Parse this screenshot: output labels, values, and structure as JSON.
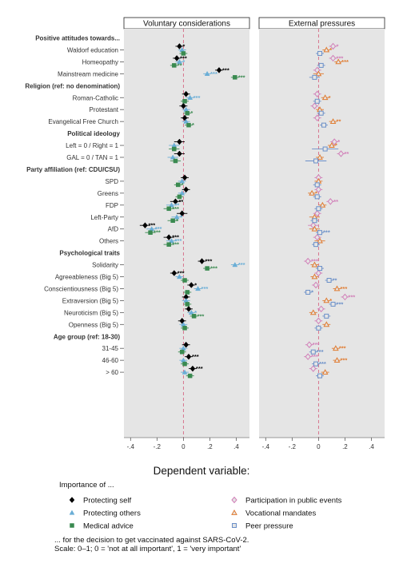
{
  "chart_data": {
    "type": "scatter",
    "subtype": "coefficient plot with 95% confidence intervals",
    "panels": [
      "Voluntary considerations",
      "External pressures"
    ],
    "xlim": [
      -0.45,
      0.5
    ],
    "xticks": [
      "-.4",
      "-.2",
      "0",
      ".2",
      ".4"
    ],
    "xtick_values": [
      -0.4,
      -0.2,
      0,
      0.2,
      0.4
    ],
    "reference_line": 0,
    "grid": false,
    "background": "#e5e5e5",
    "rows": [
      {
        "type": "header",
        "label": "Positive attitudes towards..."
      },
      {
        "type": "item",
        "label": "Waldorf education"
      },
      {
        "type": "item",
        "label": "Homeopathy"
      },
      {
        "type": "item",
        "label": "Mainstream medicine"
      },
      {
        "type": "header",
        "label": "Religion (ref: no denomination)"
      },
      {
        "type": "item",
        "label": "Roman-Catholic"
      },
      {
        "type": "item",
        "label": "Protestant"
      },
      {
        "type": "item",
        "label": "Evangelical Free Church"
      },
      {
        "type": "header",
        "label": "Political ideology"
      },
      {
        "type": "item",
        "label": "Left = 0 / Right = 1"
      },
      {
        "type": "item",
        "label": "GAL = 0 / TAN = 1"
      },
      {
        "type": "header",
        "label": "Party affiliation (ref: CDU/CSU)"
      },
      {
        "type": "item",
        "label": "SPD"
      },
      {
        "type": "item",
        "label": "Greens"
      },
      {
        "type": "item",
        "label": "FDP"
      },
      {
        "type": "item",
        "label": "Left-Party"
      },
      {
        "type": "item",
        "label": "AfD"
      },
      {
        "type": "item",
        "label": "Others"
      },
      {
        "type": "header",
        "label": "Psychological traits"
      },
      {
        "type": "item",
        "label": "Solidarity"
      },
      {
        "type": "item",
        "label": "Agreeableness (Big 5)"
      },
      {
        "type": "item",
        "label": "Conscientiousness (Big 5)"
      },
      {
        "type": "item",
        "label": "Extraversion (Big 5)"
      },
      {
        "type": "item",
        "label": "Neuroticism (Big 5)"
      },
      {
        "type": "item",
        "label": "Openness (Big 5)"
      },
      {
        "type": "header",
        "label": "Age group (ref: 18-30)"
      },
      {
        "type": "item",
        "label": "31-45"
      },
      {
        "type": "item",
        "label": "46-60"
      },
      {
        "type": "item",
        "label": "> 60"
      }
    ],
    "series": [
      {
        "name": "Protecting self",
        "panel": 0,
        "marker": "diamond",
        "color": "#000000",
        "values": [
          -0.03,
          -0.05,
          0.27,
          0.02,
          0.0,
          0.01,
          -0.03,
          -0.03,
          0.01,
          0.02,
          -0.06,
          -0.01,
          -0.29,
          -0.11,
          0.14,
          -0.07,
          0.06,
          0.02,
          0.04,
          -0.01,
          0.02,
          0.04,
          0.07
        ],
        "ci": [
          [
            -0.06,
            0.0
          ],
          [
            -0.08,
            -0.02
          ],
          [
            0.24,
            0.3
          ],
          [
            -0.01,
            0.05
          ],
          [
            -0.03,
            0.03
          ],
          [
            -0.02,
            0.04
          ],
          [
            -0.07,
            0.01
          ],
          [
            -0.07,
            0.01
          ],
          [
            -0.02,
            0.04
          ],
          [
            -0.01,
            0.05
          ],
          [
            -0.1,
            -0.02
          ],
          [
            -0.05,
            0.03
          ],
          [
            -0.33,
            -0.25
          ],
          [
            -0.15,
            -0.07
          ],
          [
            0.11,
            0.17
          ],
          [
            -0.1,
            -0.04
          ],
          [
            0.03,
            0.09
          ],
          [
            -0.01,
            0.05
          ],
          [
            0.01,
            0.07
          ],
          [
            -0.04,
            0.02
          ],
          [
            -0.01,
            0.05
          ],
          [
            0.01,
            0.07
          ],
          [
            0.04,
            0.1
          ]
        ],
        "stars": [
          "*",
          "***",
          "***",
          "",
          "",
          "",
          "",
          "",
          "",
          "",
          "**",
          "",
          "***",
          "***",
          "***",
          "***",
          "*",
          "",
          "",
          "",
          "",
          "***",
          "***"
        ]
      },
      {
        "name": "Protecting others",
        "panel": 0,
        "marker": "triangle",
        "color": "#6baed6",
        "values": [
          -0.01,
          -0.03,
          0.18,
          0.05,
          0.02,
          0.02,
          -0.07,
          -0.08,
          -0.01,
          -0.01,
          -0.09,
          -0.05,
          -0.24,
          -0.09,
          0.39,
          -0.03,
          0.11,
          0.02,
          0.06,
          0.0,
          0.0,
          0.0,
          0.01
        ],
        "ci": [
          [
            -0.04,
            0.02
          ],
          [
            -0.06,
            0.0
          ],
          [
            0.15,
            0.21
          ],
          [
            0.02,
            0.08
          ],
          [
            -0.01,
            0.05
          ],
          [
            -0.01,
            0.05
          ],
          [
            -0.11,
            -0.03
          ],
          [
            -0.12,
            -0.04
          ],
          [
            -0.04,
            0.02
          ],
          [
            -0.04,
            0.02
          ],
          [
            -0.13,
            -0.05
          ],
          [
            -0.09,
            -0.01
          ],
          [
            -0.28,
            -0.2
          ],
          [
            -0.13,
            -0.05
          ],
          [
            0.36,
            0.42
          ],
          [
            -0.06,
            0.0
          ],
          [
            0.08,
            0.14
          ],
          [
            -0.01,
            0.05
          ],
          [
            0.03,
            0.09
          ],
          [
            -0.03,
            0.03
          ],
          [
            -0.03,
            0.03
          ],
          [
            -0.03,
            0.03
          ],
          [
            -0.02,
            0.04
          ]
        ],
        "stars": [
          "",
          "*",
          "***",
          "***",
          "",
          "",
          "",
          "",
          "",
          "",
          "**",
          "*",
          "***",
          "***",
          "***",
          "",
          "***",
          "",
          "*",
          "",
          "",
          "",
          ""
        ]
      },
      {
        "name": "Medical advice",
        "panel": 0,
        "marker": "square",
        "color": "#3a8a50",
        "values": [
          0.0,
          -0.07,
          0.39,
          0.01,
          0.03,
          0.04,
          -0.07,
          -0.06,
          -0.04,
          -0.03,
          -0.11,
          -0.08,
          -0.25,
          -0.11,
          0.18,
          0.01,
          0.03,
          0.03,
          0.08,
          0.01,
          -0.01,
          0.01,
          0.05
        ],
        "ci": [
          [
            -0.03,
            0.03
          ],
          [
            -0.1,
            -0.04
          ],
          [
            0.36,
            0.42
          ],
          [
            -0.02,
            0.04
          ],
          [
            0.0,
            0.06
          ],
          [
            0.01,
            0.07
          ],
          [
            -0.11,
            -0.03
          ],
          [
            -0.1,
            -0.02
          ],
          [
            -0.07,
            -0.01
          ],
          [
            -0.06,
            0.0
          ],
          [
            -0.15,
            -0.07
          ],
          [
            -0.12,
            -0.04
          ],
          [
            -0.29,
            -0.21
          ],
          [
            -0.15,
            -0.07
          ],
          [
            0.15,
            0.21
          ],
          [
            -0.02,
            0.04
          ],
          [
            0.0,
            0.06
          ],
          [
            0.0,
            0.06
          ],
          [
            0.05,
            0.11
          ],
          [
            -0.02,
            0.04
          ],
          [
            -0.04,
            0.02
          ],
          [
            -0.02,
            0.04
          ],
          [
            0.02,
            0.08
          ]
        ],
        "stars": [
          "",
          "**",
          "***",
          "",
          "*",
          "*",
          "",
          "",
          "*",
          "",
          "***",
          "*",
          "***",
          "***",
          "***",
          "",
          "",
          "",
          "***",
          "",
          "",
          "",
          ""
        ]
      },
      {
        "name": "Participation in public events",
        "panel": 1,
        "marker": "diamond-open",
        "color": "#d17fb8",
        "values": [
          0.11,
          0.11,
          -0.01,
          -0.01,
          -0.03,
          -0.01,
          0.12,
          0.17,
          0.0,
          0.0,
          0.09,
          -0.01,
          -0.04,
          -0.01,
          -0.08,
          0.0,
          -0.02,
          0.2,
          0.02,
          0.0,
          -0.07,
          -0.08,
          -0.04
        ],
        "ci": [
          [
            0.08,
            0.14
          ],
          [
            0.08,
            0.14
          ],
          [
            -0.04,
            0.02
          ],
          [
            -0.04,
            0.02
          ],
          [
            -0.06,
            0.0
          ],
          [
            -0.04,
            0.02
          ],
          [
            0.09,
            0.15
          ],
          [
            0.14,
            0.2
          ],
          [
            -0.03,
            0.03
          ],
          [
            -0.03,
            0.03
          ],
          [
            0.06,
            0.12
          ],
          [
            -0.04,
            0.02
          ],
          [
            -0.08,
            0.0
          ],
          [
            -0.04,
            0.02
          ],
          [
            -0.11,
            -0.05
          ],
          [
            -0.03,
            0.03
          ],
          [
            -0.05,
            0.01
          ],
          [
            0.17,
            0.23
          ],
          [
            -0.01,
            0.05
          ],
          [
            -0.03,
            0.03
          ],
          [
            -0.1,
            -0.04
          ],
          [
            -0.11,
            -0.05
          ],
          [
            -0.07,
            -0.01
          ]
        ],
        "stars": [
          "*",
          "***",
          "",
          "",
          "",
          "",
          "*",
          "**",
          "",
          "",
          "**",
          "",
          "",
          "",
          "***",
          "",
          "",
          "***",
          "",
          "",
          "***",
          "***",
          ""
        ]
      },
      {
        "name": "Vocational mandates",
        "panel": 1,
        "marker": "triangle-open",
        "color": "#e07b30",
        "values": [
          0.06,
          0.15,
          0.0,
          0.05,
          0.01,
          0.11,
          0.1,
          0.01,
          0.0,
          -0.05,
          0.03,
          -0.03,
          -0.03,
          0.01,
          -0.03,
          -0.03,
          0.14,
          0.06,
          -0.04,
          0.06,
          0.13,
          0.14,
          0.05
        ],
        "ci": [
          [
            0.03,
            0.09
          ],
          [
            0.12,
            0.18
          ],
          [
            -0.04,
            0.04
          ],
          [
            0.02,
            0.08
          ],
          [
            -0.02,
            0.04
          ],
          [
            0.08,
            0.14
          ],
          [
            0.07,
            0.13
          ],
          [
            -0.02,
            0.04
          ],
          [
            -0.03,
            0.03
          ],
          [
            -0.08,
            -0.02
          ],
          [
            0.0,
            0.06
          ],
          [
            -0.07,
            0.01
          ],
          [
            -0.07,
            0.01
          ],
          [
            -0.03,
            0.05
          ],
          [
            -0.06,
            0.0
          ],
          [
            -0.06,
            0.0
          ],
          [
            0.11,
            0.17
          ],
          [
            0.03,
            0.09
          ],
          [
            -0.07,
            -0.01
          ],
          [
            0.03,
            0.09
          ],
          [
            0.1,
            0.16
          ],
          [
            0.11,
            0.17
          ],
          [
            0.02,
            0.08
          ]
        ],
        "stars": [
          "*",
          "***",
          "",
          "*",
          "",
          "**",
          "*",
          "",
          "",
          "*",
          "",
          "",
          "",
          "",
          "",
          "",
          "***",
          "*",
          "",
          "",
          "***",
          "***",
          ""
        ]
      },
      {
        "name": "Peer pressure",
        "panel": 1,
        "marker": "square-open",
        "color": "#6a8fc8",
        "values": [
          0.01,
          0.02,
          -0.03,
          -0.01,
          0.02,
          0.04,
          0.05,
          -0.02,
          -0.01,
          -0.01,
          0.0,
          -0.03,
          0.01,
          -0.02,
          0.01,
          0.08,
          -0.08,
          0.11,
          0.06,
          0.0,
          -0.04,
          -0.02,
          0.01
        ],
        "ci": [
          [
            -0.02,
            0.04
          ],
          [
            -0.01,
            0.05
          ],
          [
            -0.07,
            0.01
          ],
          [
            -0.04,
            0.02
          ],
          [
            -0.01,
            0.05
          ],
          [
            0.01,
            0.07
          ],
          [
            -0.05,
            0.15
          ],
          [
            -0.1,
            0.06
          ],
          [
            -0.04,
            0.02
          ],
          [
            -0.04,
            0.02
          ],
          [
            -0.03,
            0.03
          ],
          [
            -0.06,
            0.0
          ],
          [
            -0.02,
            0.04
          ],
          [
            -0.05,
            0.01
          ],
          [
            -0.02,
            0.04
          ],
          [
            0.05,
            0.11
          ],
          [
            -0.11,
            -0.05
          ],
          [
            0.08,
            0.14
          ],
          [
            0.03,
            0.09
          ],
          [
            -0.03,
            0.03
          ],
          [
            -0.07,
            -0.01
          ],
          [
            -0.05,
            0.01
          ],
          [
            -0.02,
            0.04
          ]
        ],
        "stars": [
          "",
          "",
          "",
          "",
          "",
          "",
          "",
          "",
          "",
          "",
          "",
          "",
          "***",
          "",
          "",
          "**",
          "*",
          "***",
          "",
          "",
          "***",
          "***",
          ""
        ]
      }
    ],
    "legend": {
      "title": "Dependent variable:",
      "subtitle": "Importance of ...",
      "footnote_1": "... for the decision to get vaccinated against SARS-CoV-2.",
      "footnote_2": "Scale: 0–1; 0 = 'not at all important', 1 = 'very important'",
      "placement": "bottom"
    }
  }
}
